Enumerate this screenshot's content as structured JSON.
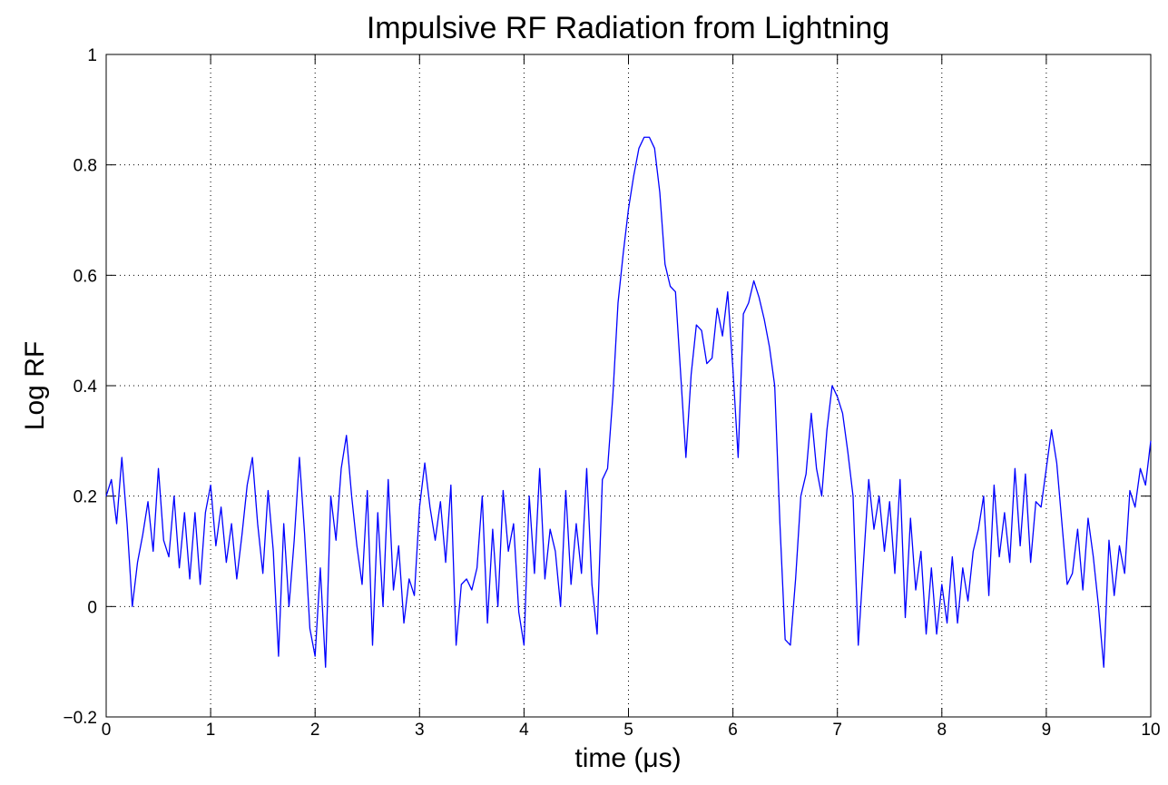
{
  "chart_data": {
    "type": "line",
    "title": "Impulsive RF Radiation from Lightning",
    "xlabel": "time (μs)",
    "ylabel": "Log RF",
    "color": "#0000ff",
    "grid": true,
    "xlim": [
      0,
      10
    ],
    "xticks": [
      0,
      1,
      2,
      3,
      4,
      5,
      6,
      7,
      8,
      9,
      10
    ],
    "ylim": [
      -0.2,
      1
    ],
    "yticks": [
      {
        "value": -0.2,
        "label": "−0.2"
      },
      0,
      0.2,
      0.4,
      0.6,
      0.8,
      1
    ],
    "x": [
      0,
      0.05,
      0.1,
      0.15,
      0.2,
      0.25,
      0.3,
      0.35,
      0.4,
      0.45,
      0.5,
      0.55,
      0.6,
      0.65,
      0.7,
      0.75,
      0.8,
      0.85,
      0.9,
      0.95,
      1,
      1.05,
      1.1,
      1.15,
      1.2,
      1.25,
      1.3,
      1.35,
      1.4,
      1.45,
      1.5,
      1.55,
      1.6,
      1.65,
      1.7,
      1.75,
      1.8,
      1.85,
      1.9,
      1.95,
      2,
      2.05,
      2.1,
      2.15,
      2.2,
      2.25,
      2.3,
      2.35,
      2.4,
      2.45,
      2.5,
      2.55,
      2.6,
      2.65,
      2.7,
      2.75,
      2.8,
      2.85,
      2.9,
      2.95,
      3,
      3.05,
      3.1,
      3.15,
      3.2,
      3.25,
      3.3,
      3.35,
      3.4,
      3.45,
      3.5,
      3.55,
      3.6,
      3.65,
      3.7,
      3.75,
      3.8,
      3.85,
      3.9,
      3.95,
      4,
      4.05,
      4.1,
      4.15,
      4.2,
      4.25,
      4.3,
      4.35,
      4.4,
      4.45,
      4.5,
      4.55,
      4.6,
      4.65,
      4.7,
      4.75,
      4.8,
      4.85,
      4.9,
      4.95,
      5,
      5.05,
      5.1,
      5.15,
      5.2,
      5.25,
      5.3,
      5.35,
      5.4,
      5.45,
      5.5,
      5.55,
      5.6,
      5.65,
      5.7,
      5.75,
      5.8,
      5.85,
      5.9,
      5.95,
      6,
      6.05,
      6.1,
      6.15,
      6.2,
      6.25,
      6.3,
      6.35,
      6.4,
      6.45,
      6.5,
      6.55,
      6.6,
      6.65,
      6.7,
      6.75,
      6.8,
      6.85,
      6.9,
      6.95,
      7,
      7.05,
      7.1,
      7.15,
      7.2,
      7.25,
      7.3,
      7.35,
      7.4,
      7.45,
      7.5,
      7.55,
      7.6,
      7.65,
      7.7,
      7.75,
      7.8,
      7.85,
      7.9,
      7.95,
      8,
      8.05,
      8.1,
      8.15,
      8.2,
      8.25,
      8.3,
      8.35,
      8.4,
      8.45,
      8.5,
      8.55,
      8.6,
      8.65,
      8.7,
      8.75,
      8.8,
      8.85,
      8.9,
      8.95,
      9,
      9.05,
      9.1,
      9.15,
      9.2,
      9.25,
      9.3,
      9.35,
      9.4,
      9.45,
      9.5,
      9.55,
      9.6,
      9.65,
      9.7,
      9.75,
      9.8,
      9.85,
      9.9,
      9.95,
      10
    ],
    "values": [
      0.2,
      0.23,
      0.15,
      0.27,
      0.15,
      0,
      0.08,
      0.13,
      0.19,
      0.1,
      0.25,
      0.12,
      0.09,
      0.2,
      0.07,
      0.17,
      0.05,
      0.17,
      0.04,
      0.17,
      0.22,
      0.11,
      0.18,
      0.08,
      0.15,
      0.05,
      0.13,
      0.22,
      0.27,
      0.15,
      0.06,
      0.21,
      0.1,
      -0.09,
      0.15,
      0,
      0.12,
      0.27,
      0.13,
      -0.04,
      -0.09,
      0.07,
      -0.11,
      0.2,
      0.12,
      0.25,
      0.31,
      0.2,
      0.11,
      0.04,
      0.21,
      -0.07,
      0.17,
      0,
      0.23,
      0.03,
      0.11,
      -0.03,
      0.05,
      0.02,
      0.18,
      0.26,
      0.18,
      0.12,
      0.19,
      0.08,
      0.22,
      -0.07,
      0.04,
      0.05,
      0.03,
      0.07,
      0.2,
      -0.03,
      0.14,
      0,
      0.21,
      0.1,
      0.15,
      -0.01,
      -0.07,
      0.2,
      0.06,
      0.25,
      0.05,
      0.14,
      0.1,
      0,
      0.21,
      0.04,
      0.15,
      0.06,
      0.25,
      0.04,
      -0.05,
      0.23,
      0.25,
      0.38,
      0.55,
      0.64,
      0.72,
      0.78,
      0.83,
      0.85,
      0.85,
      0.83,
      0.75,
      0.62,
      0.58,
      0.57,
      0.42,
      0.27,
      0.42,
      0.51,
      0.5,
      0.44,
      0.45,
      0.54,
      0.49,
      0.57,
      0.43,
      0.27,
      0.53,
      0.55,
      0.59,
      0.56,
      0.52,
      0.47,
      0.4,
      0.15,
      -0.06,
      -0.07,
      0.05,
      0.2,
      0.24,
      0.35,
      0.25,
      0.2,
      0.32,
      0.4,
      0.38,
      0.35,
      0.28,
      0.2,
      -0.07,
      0.08,
      0.23,
      0.14,
      0.2,
      0.1,
      0.19,
      0.06,
      0.23,
      -0.02,
      0.16,
      0.03,
      0.1,
      -0.05,
      0.07,
      -0.05,
      0.04,
      -0.03,
      0.09,
      -0.03,
      0.07,
      0.01,
      0.1,
      0.14,
      0.2,
      0.02,
      0.22,
      0.09,
      0.17,
      0.08,
      0.25,
      0.11,
      0.24,
      0.08,
      0.19,
      0.18,
      0.25,
      0.32,
      0.26,
      0.15,
      0.04,
      0.06,
      0.14,
      0.03,
      0.16,
      0.09,
      0,
      -0.11,
      0.12,
      0.02,
      0.11,
      0.06,
      0.21,
      0.18,
      0.25,
      0.22,
      0.3
    ]
  }
}
